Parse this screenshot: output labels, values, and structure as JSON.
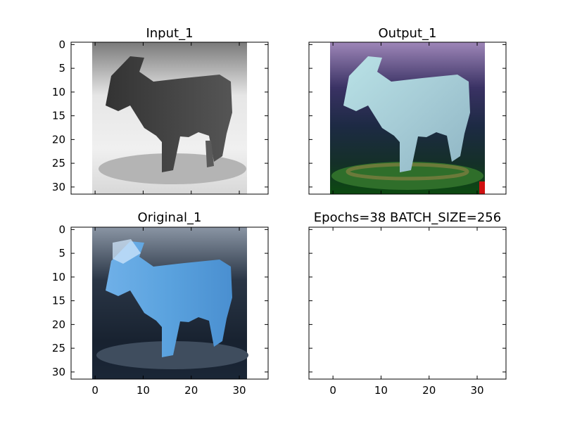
{
  "chart_data": [
    {
      "type": "image",
      "title": "Input_1",
      "xlim": [
        -5,
        36
      ],
      "ylim": [
        31.5,
        -0.5
      ],
      "yticks": [
        0,
        5,
        10,
        15,
        20,
        25,
        30
      ],
      "xticks": [],
      "image_extent": [
        -0.5,
        31.5,
        31.5,
        -0.5
      ],
      "image_colormap": "grayscale",
      "image_content": "horse"
    },
    {
      "type": "image",
      "title": "Output_1",
      "xlim": [
        -5,
        36
      ],
      "ylim": [
        31.5,
        -0.5
      ],
      "yticks": [],
      "xticks": [],
      "image_extent": [
        -0.5,
        31.5,
        31.5,
        -0.5
      ],
      "image_colormap": "false-color",
      "image_content": "horse"
    },
    {
      "type": "image",
      "title": "Original_1",
      "xlim": [
        -5,
        36
      ],
      "ylim": [
        31.5,
        -0.5
      ],
      "yticks": [
        0,
        5,
        10,
        15,
        20,
        25,
        30
      ],
      "xticks": [
        0,
        10,
        20,
        30
      ],
      "image_extent": [
        -0.5,
        31.5,
        31.5,
        -0.5
      ],
      "image_colormap": "blue",
      "image_content": "horse"
    },
    {
      "type": "empty",
      "title": "Epochs=38 BATCH_SIZE=256",
      "xlim": [
        -5,
        36
      ],
      "ylim": [
        31.5,
        -0.5
      ],
      "yticks": [],
      "xticks": [
        0,
        10,
        20,
        30
      ]
    }
  ]
}
